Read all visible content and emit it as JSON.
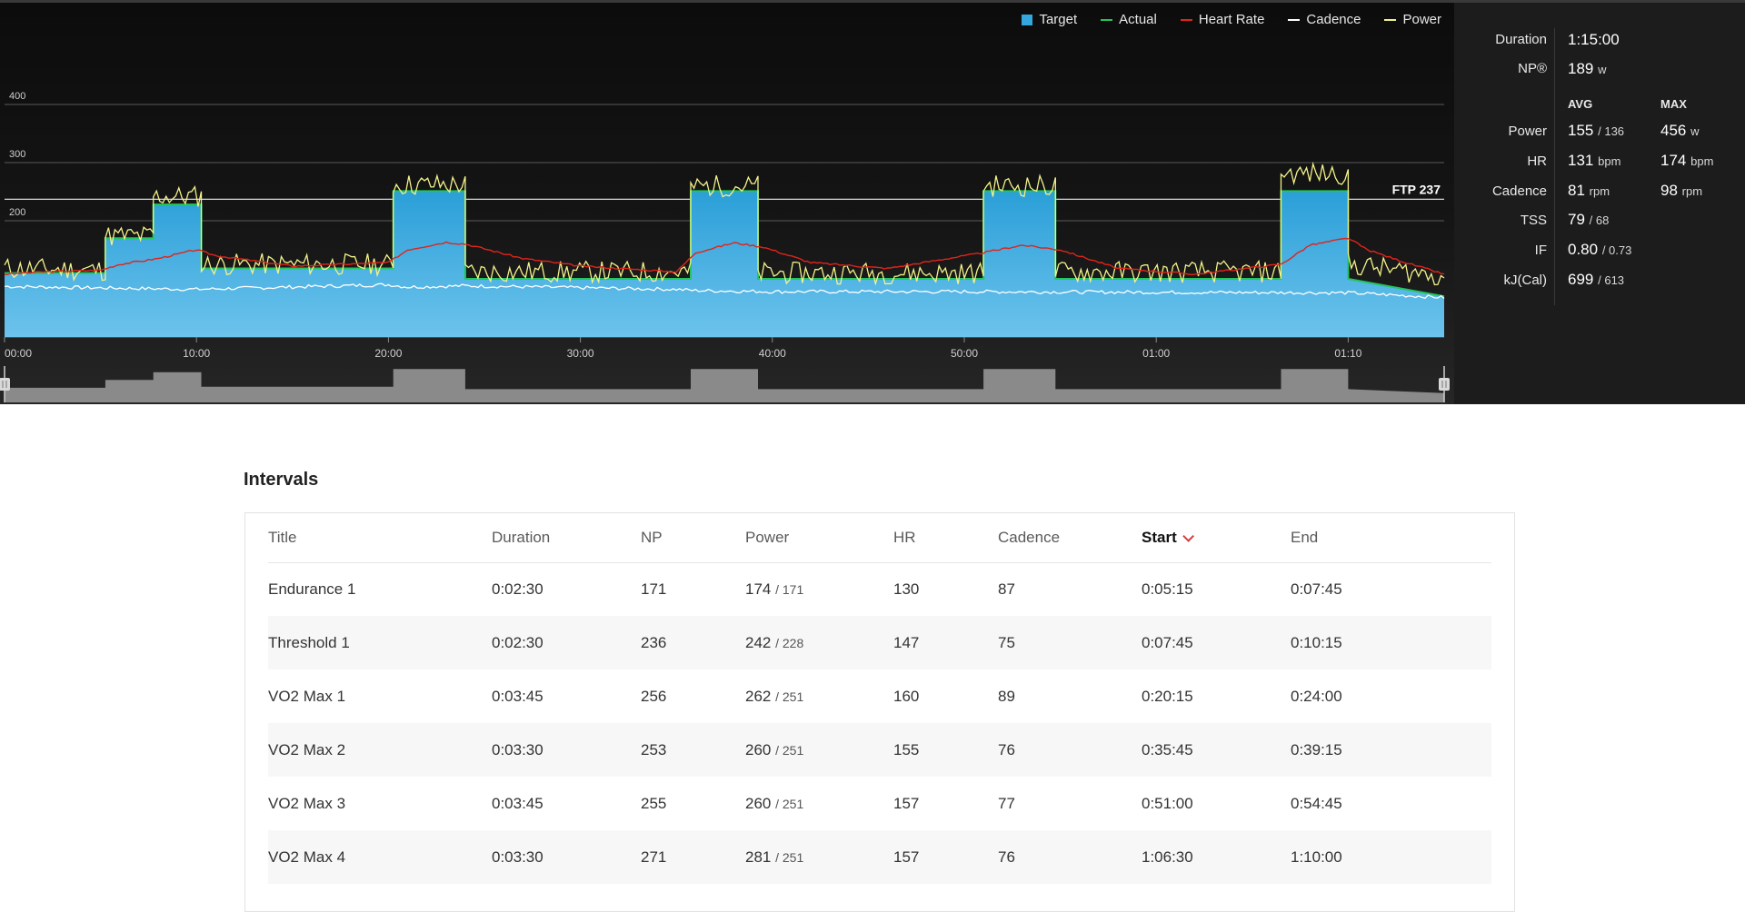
{
  "legend": [
    {
      "label": "Target",
      "color": "#34a8de",
      "kind": "box"
    },
    {
      "label": "Actual",
      "color": "#22c55e",
      "kind": "line"
    },
    {
      "label": "Heart Rate",
      "color": "#e0241b",
      "kind": "line"
    },
    {
      "label": "Cadence",
      "color": "#ffffff",
      "kind": "line"
    },
    {
      "label": "Power",
      "color": "#f2f28a",
      "kind": "line"
    }
  ],
  "ftp_label": "FTP 237",
  "chart_data": {
    "type": "line",
    "x_unit": "minutes",
    "x_ticks": [
      "00:00",
      "10:00",
      "20:00",
      "30:00",
      "40:00",
      "50:00",
      "01:00",
      "01:10"
    ],
    "x_range": [
      0,
      75
    ],
    "y_ticks": [
      "400",
      "300",
      "200"
    ],
    "y_range": [
      0,
      400
    ],
    "ftp": 237,
    "grid": true,
    "legend_position": "top-right",
    "series": [
      {
        "name": "Target",
        "x": [
          0,
          5.25,
          5.25,
          7.75,
          7.75,
          10.25,
          10.25,
          20.25,
          20.25,
          24.0,
          24.0,
          35.75,
          35.75,
          39.25,
          39.25,
          51.0,
          51.0,
          54.75,
          54.75,
          66.5,
          66.5,
          70.0,
          70.0,
          75.0
        ],
        "y": [
          110,
          110,
          170,
          170,
          228,
          228,
          118,
          118,
          251,
          251,
          100,
          100,
          251,
          251,
          100,
          100,
          251,
          251,
          100,
          100,
          251,
          251,
          100,
          70
        ]
      },
      {
        "name": "Heart Rate",
        "x": [
          0,
          2,
          5,
          6,
          8,
          10,
          11,
          15,
          20,
          21,
          23,
          24,
          27,
          30,
          35,
          36,
          38,
          39.5,
          42,
          46,
          51,
          53,
          55,
          58,
          62,
          66.5,
          68,
          70,
          71,
          73,
          75
        ],
        "y": [
          108,
          112,
          115,
          125,
          135,
          150,
          140,
          122,
          128,
          150,
          163,
          160,
          135,
          122,
          112,
          145,
          162,
          155,
          128,
          118,
          145,
          158,
          150,
          118,
          108,
          125,
          158,
          170,
          150,
          128,
          108
        ]
      },
      {
        "name": "Cadence",
        "x": [
          0,
          10,
          20,
          21,
          24,
          35,
          36,
          40,
          50,
          60,
          70,
          75
        ],
        "y": [
          87,
          82,
          90,
          86,
          88,
          82,
          80,
          78,
          78,
          77,
          76,
          68
        ]
      },
      {
        "name": "Power",
        "x": [
          0,
          5.25,
          5.25,
          7.75,
          7.75,
          10.25,
          10.25,
          20.25,
          20.25,
          24.0,
          24.0,
          35.75,
          35.75,
          39.25,
          39.25,
          51.0,
          51.0,
          54.75,
          54.75,
          66.5,
          66.5,
          70.0,
          70.0,
          75.0
        ],
        "y": [
          118,
          115,
          174,
          174,
          242,
          242,
          125,
          125,
          262,
          262,
          112,
          112,
          260,
          260,
          110,
          110,
          260,
          260,
          112,
          112,
          281,
          281,
          125,
          105
        ]
      }
    ],
    "summary": {
      "avg_power": 155,
      "max_power": 456,
      "np": 189
    }
  },
  "stats": {
    "duration_label": "Duration",
    "duration_value": "1:15:00",
    "np_label": "NP®",
    "np_value": "189",
    "np_unit": "w",
    "avg_head": "AVG",
    "max_head": "MAX",
    "rows": [
      {
        "label": "Power",
        "avg_main": "155",
        "avg_sub": "/ 136",
        "max_main": "456",
        "max_sub": "w"
      },
      {
        "label": "HR",
        "avg_main": "131",
        "avg_sub": "bpm",
        "max_main": "174",
        "max_sub": "bpm"
      },
      {
        "label": "Cadence",
        "avg_main": "81",
        "avg_sub": "rpm",
        "max_main": "98",
        "max_sub": "rpm"
      },
      {
        "label": "TSS",
        "avg_main": "79",
        "avg_sub": "/ 68",
        "max_main": "",
        "max_sub": ""
      },
      {
        "label": "IF",
        "avg_main": "0.80",
        "avg_sub": "/ 0.73",
        "max_main": "",
        "max_sub": ""
      },
      {
        "label": "kJ(Cal)",
        "avg_main": "699",
        "avg_sub": "/ 613",
        "max_main": "",
        "max_sub": ""
      }
    ]
  },
  "intervals": {
    "title": "Intervals",
    "columns": [
      {
        "label": "Title",
        "sorted": false
      },
      {
        "label": "Duration",
        "sorted": false
      },
      {
        "label": "NP",
        "sorted": false
      },
      {
        "label": "Power",
        "sorted": false
      },
      {
        "label": "HR",
        "sorted": false
      },
      {
        "label": "Cadence",
        "sorted": false
      },
      {
        "label": "Start",
        "sorted": true
      },
      {
        "label": "End",
        "sorted": false
      }
    ],
    "rows": [
      {
        "title": "Endurance 1",
        "duration": "0:02:30",
        "np": "171",
        "power_main": "174",
        "power_sub": "/ 171",
        "hr": "130",
        "cadence": "87",
        "start": "0:05:15",
        "end": "0:07:45"
      },
      {
        "title": "Threshold 1",
        "duration": "0:02:30",
        "np": "236",
        "power_main": "242",
        "power_sub": "/ 228",
        "hr": "147",
        "cadence": "75",
        "start": "0:07:45",
        "end": "0:10:15"
      },
      {
        "title": "VO2 Max 1",
        "duration": "0:03:45",
        "np": "256",
        "power_main": "262",
        "power_sub": "/ 251",
        "hr": "160",
        "cadence": "89",
        "start": "0:20:15",
        "end": "0:24:00"
      },
      {
        "title": "VO2 Max 2",
        "duration": "0:03:30",
        "np": "253",
        "power_main": "260",
        "power_sub": "/ 251",
        "hr": "155",
        "cadence": "76",
        "start": "0:35:45",
        "end": "0:39:15"
      },
      {
        "title": "VO2 Max 3",
        "duration": "0:03:45",
        "np": "255",
        "power_main": "260",
        "power_sub": "/ 251",
        "hr": "157",
        "cadence": "77",
        "start": "0:51:00",
        "end": "0:54:45"
      },
      {
        "title": "VO2 Max 4",
        "duration": "0:03:30",
        "np": "271",
        "power_main": "281",
        "power_sub": "/ 251",
        "hr": "157",
        "cadence": "76",
        "start": "1:06:30",
        "end": "1:10:00"
      }
    ]
  }
}
